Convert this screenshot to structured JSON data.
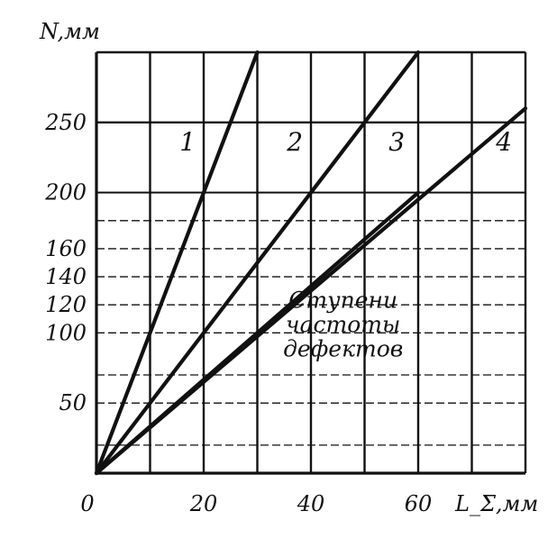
{
  "chart_data": {
    "type": "line",
    "title": "",
    "xlabel": "L_Σ,мм",
    "ylabel": "N,мм",
    "xlim": [
      0,
      80
    ],
    "ylim": [
      0,
      300
    ],
    "x_ticks": [
      {
        "value": 0,
        "label": "0"
      },
      {
        "value": 20,
        "label": "20"
      },
      {
        "value": 40,
        "label": "40"
      },
      {
        "value": 60,
        "label": "60"
      }
    ],
    "y_ticks": [
      {
        "value": 50,
        "label": "50"
      },
      {
        "value": 100,
        "label": "100"
      },
      {
        "value": 120,
        "label": "120"
      },
      {
        "value": 140,
        "label": "140"
      },
      {
        "value": 160,
        "label": "160"
      },
      {
        "value": 200,
        "label": "200"
      },
      {
        "value": 250,
        "label": "250"
      }
    ],
    "x_grid_major": [
      0,
      10,
      20,
      30,
      40,
      50,
      60,
      70,
      80
    ],
    "y_grid_solid": [
      0,
      250,
      300
    ],
    "y_grid_medium": [
      200
    ],
    "y_grid_dashed": [
      20,
      50,
      70,
      100,
      120,
      140,
      160,
      180
    ],
    "series": [
      {
        "name": "1",
        "x": [
          0,
          30
        ],
        "y": [
          0,
          300
        ],
        "label_at": [
          17,
          230
        ]
      },
      {
        "name": "2",
        "x": [
          0,
          60
        ],
        "y": [
          0,
          300
        ],
        "label_at": [
          37,
          230
        ]
      },
      {
        "name": "3",
        "x": [
          0,
          80
        ],
        "y": [
          0,
          260
        ],
        "label_at": [
          56,
          230
        ]
      },
      {
        "name": "4",
        "x": [
          0,
          60
        ],
        "y": [
          0,
          200
        ],
        "label_at": [
          76,
          230
        ]
      }
    ],
    "annotation": {
      "lines": [
        "Ступени",
        "частоты",
        "дефектов"
      ],
      "x": 46,
      "y": 118
    },
    "colors": {
      "ink": "#111111",
      "background": "#ffffff"
    }
  }
}
